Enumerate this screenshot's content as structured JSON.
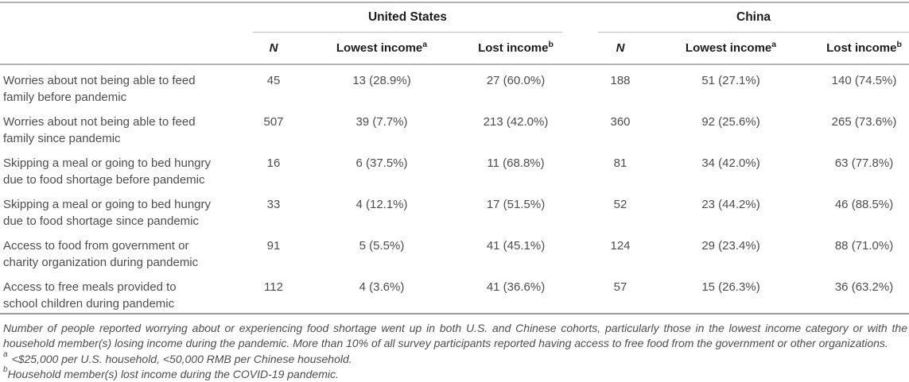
{
  "table": {
    "groups": {
      "us": "United States",
      "china": "China"
    },
    "columns": {
      "n": "N",
      "lowest_label": "Lowest income",
      "lowest_sup": "a",
      "lost_label": "Lost income",
      "lost_sup": "b"
    },
    "rows": [
      {
        "label": "Worries about not being able to feed\nfamily before pandemic",
        "us": {
          "n": "45",
          "lowest": "13 (28.9%)",
          "lost": "27 (60.0%)"
        },
        "china": {
          "n": "188",
          "lowest": "51 (27.1%)",
          "lost": "140 (74.5%)"
        }
      },
      {
        "label": "Worries about not being able to feed\nfamily since pandemic",
        "us": {
          "n": "507",
          "lowest": "39 (7.7%)",
          "lost": "213 (42.0%)"
        },
        "china": {
          "n": "360",
          "lowest": "92 (25.6%)",
          "lost": "265 (73.6%)"
        }
      },
      {
        "label": "Skipping a meal or going to bed hungry\ndue to food shortage before pandemic",
        "us": {
          "n": "16",
          "lowest": "6 (37.5%)",
          "lost": "11 (68.8%)"
        },
        "china": {
          "n": "81",
          "lowest": "34 (42.0%)",
          "lost": "63 (77.8%)"
        }
      },
      {
        "label": "Skipping a meal or going to bed hungry\ndue to food shortage since pandemic",
        "us": {
          "n": "33",
          "lowest": "4 (12.1%)",
          "lost": "17 (51.5%)"
        },
        "china": {
          "n": "52",
          "lowest": "23 (44.2%)",
          "lost": "46 (88.5%)"
        }
      },
      {
        "label": "Access to food from government or\ncharity organization during pandemic",
        "us": {
          "n": "91",
          "lowest": "5 (5.5%)",
          "lost": "41 (45.1%)"
        },
        "china": {
          "n": "124",
          "lowest": "29 (23.4%)",
          "lost": "88 (71.0%)"
        }
      },
      {
        "label": "Access to free meals provided to\nschool children during pandemic",
        "us": {
          "n": "112",
          "lowest": "4 (3.6%)",
          "lost": "41 (36.6%)"
        },
        "china": {
          "n": "57",
          "lowest": "15 (26.3%)",
          "lost": "36 (63.2%)"
        }
      }
    ]
  },
  "footnotes": {
    "summary": "Number of people reported worrying about or experiencing food shortage went up in both U.S. and Chinese cohorts, particularly those in the lowest income category or with the household member(s) losing income during the pandemic. More than 10% of all survey participants reported having access to free food from the government or other organizations.",
    "note_a_sup": "a",
    "note_a_text": "<$25,000 per U.S. household, <50,000 RMB per Chinese household.",
    "note_b_sup": "b",
    "note_b_text": "Household member(s) lost income during the COVID-19 pandemic."
  },
  "colors": {
    "rule_light_gray": "#b2b2b2",
    "rule_bottom_gray": "#9a9a9a",
    "header_text": "#1c1c1c",
    "body_text": "#4d4d4d"
  }
}
